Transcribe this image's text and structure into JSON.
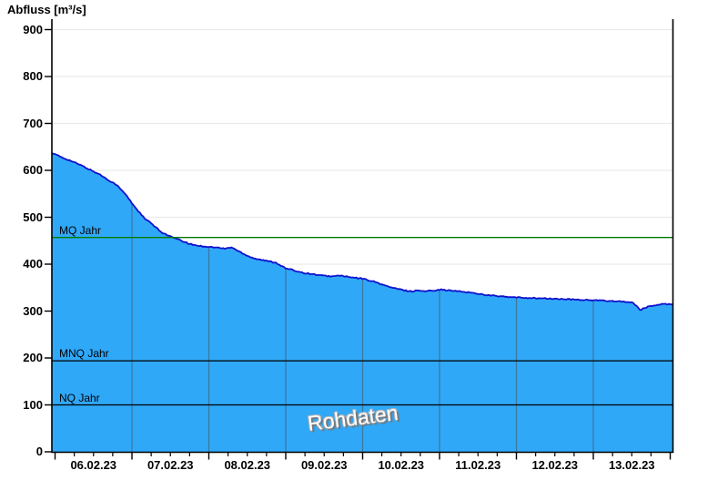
{
  "title": "Abfluss [m³/s]",
  "watermark": "Rohdaten",
  "reference_lines": {
    "mq": {
      "label": "MQ Jahr",
      "value": 457,
      "color": "#007c00"
    },
    "mnq": {
      "label": "MNQ Jahr",
      "value": 194,
      "color": "#000000"
    },
    "nq": {
      "label": "NQ Jahr",
      "value": 100,
      "color": "#000000"
    }
  },
  "chart_data": {
    "type": "area",
    "title": "Abfluss [m³/s]",
    "ylabel": "Abfluss [m³/s]",
    "unit": "m³/s",
    "ylim": [
      0,
      900
    ],
    "y_ticks": [
      0,
      100,
      200,
      300,
      400,
      500,
      600,
      700,
      800,
      900
    ],
    "x_tick_labels": [
      "06.02.23",
      "07.02.23",
      "08.02.23",
      "09.02.23",
      "10.02.23",
      "11.02.23",
      "12.02.23",
      "13.02.23"
    ],
    "x_hours_range": [
      -1,
      192.7
    ],
    "hours_per_day": 24,
    "grid": {
      "vertical_day_lines": true,
      "horizontal_lines": true
    },
    "legend": "none",
    "annotations": [
      "Rohdaten",
      "MQ Jahr",
      "MNQ Jahr",
      "NQ Jahr"
    ],
    "noise_amplitude": 2.4,
    "series": [
      {
        "name": "Rohdaten",
        "fill": "#2fa8f8",
        "stroke": "#1111cd",
        "points_h_value": [
          [
            -1,
            637
          ],
          [
            2,
            628
          ],
          [
            5,
            620
          ],
          [
            8,
            611
          ],
          [
            11,
            601
          ],
          [
            14,
            591
          ],
          [
            16,
            582
          ],
          [
            19,
            570
          ],
          [
            22,
            549
          ],
          [
            24,
            530
          ],
          [
            26,
            513
          ],
          [
            28,
            497
          ],
          [
            30,
            487
          ],
          [
            33,
            469
          ],
          [
            36,
            459
          ],
          [
            39,
            451
          ],
          [
            42,
            443
          ],
          [
            45,
            439
          ],
          [
            48,
            437
          ],
          [
            51,
            435
          ],
          [
            53,
            433
          ],
          [
            55,
            436
          ],
          [
            58,
            425
          ],
          [
            61,
            415
          ],
          [
            63,
            411
          ],
          [
            66,
            407
          ],
          [
            69,
            403
          ],
          [
            72,
            391
          ],
          [
            75,
            386
          ],
          [
            78,
            381
          ],
          [
            81,
            378
          ],
          [
            84,
            375
          ],
          [
            87,
            374
          ],
          [
            89,
            376
          ],
          [
            92,
            372
          ],
          [
            96,
            369
          ],
          [
            99,
            364
          ],
          [
            102,
            357
          ],
          [
            104,
            352
          ],
          [
            107,
            347
          ],
          [
            110,
            343
          ],
          [
            112,
            342
          ],
          [
            113,
            345
          ],
          [
            115,
            342
          ],
          [
            118,
            344
          ],
          [
            120,
            346
          ],
          [
            123,
            344
          ],
          [
            126,
            342
          ],
          [
            129,
            340
          ],
          [
            132,
            337
          ],
          [
            135,
            334
          ],
          [
            138,
            332
          ],
          [
            141,
            330
          ],
          [
            144,
            329
          ],
          [
            148,
            328
          ],
          [
            152,
            327
          ],
          [
            156,
            326
          ],
          [
            160,
            325
          ],
          [
            164,
            324
          ],
          [
            168,
            323
          ],
          [
            172,
            322
          ],
          [
            176,
            321
          ],
          [
            178,
            320
          ],
          [
            180,
            318
          ],
          [
            181,
            314
          ],
          [
            182,
            308
          ],
          [
            182.5,
            302
          ],
          [
            183.5,
            305
          ],
          [
            185,
            309
          ],
          [
            187,
            312
          ],
          [
            189,
            314
          ],
          [
            191,
            315
          ],
          [
            192.7,
            314
          ]
        ]
      }
    ]
  }
}
